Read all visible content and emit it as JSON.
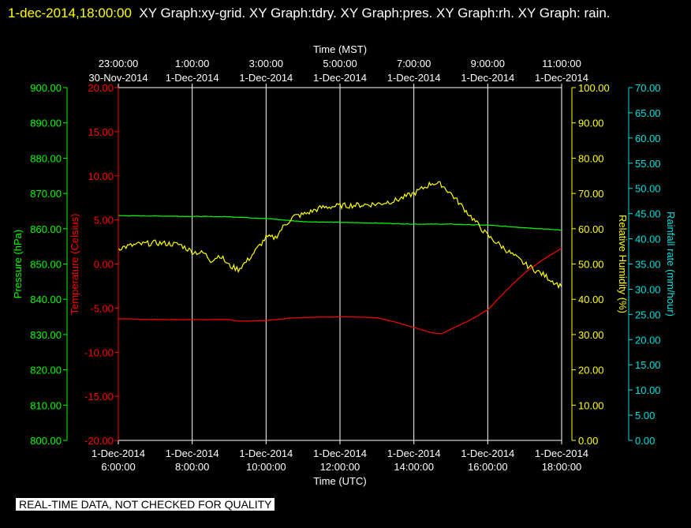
{
  "header": {
    "timestamp": "1-dec-2014,18:00:00",
    "graph_names": "XY Graph:xy-grid.  XY Graph:tdry.  XY Graph:pres.  XY Graph:rh.  XY Graph: rain."
  },
  "disclaimer": "REAL-TIME DATA, NOT CHECKED FOR QUALITY",
  "colors": {
    "background": "#000000",
    "grid": "#ffffff",
    "temperature": "#ff0000",
    "pressure": "#00ff00",
    "humidity": "#ffff00",
    "rainfall": "#00e0e0"
  },
  "chart_data": {
    "type": "line",
    "grid": true,
    "x_axis_bottom": {
      "label": "Time (UTC)",
      "ticks": [
        {
          "date": "1-Dec-2014",
          "time": "6:00:00"
        },
        {
          "date": "1-Dec-2014",
          "time": "8:00:00"
        },
        {
          "date": "1-Dec-2014",
          "time": "10:00:00"
        },
        {
          "date": "1-Dec-2014",
          "time": "12:00:00"
        },
        {
          "date": "1-Dec-2014",
          "time": "14:00:00"
        },
        {
          "date": "1-Dec-2014",
          "time": "16:00:00"
        },
        {
          "date": "1-Dec-2014",
          "time": "18:00:00"
        }
      ]
    },
    "x_axis_top": {
      "label": "Time (MST)",
      "ticks": [
        {
          "time": "23:00:00",
          "date": "30-Nov-2014"
        },
        {
          "time": "1:00:00",
          "date": "1-Dec-2014"
        },
        {
          "time": "3:00:00",
          "date": "1-Dec-2014"
        },
        {
          "time": "5:00:00",
          "date": "1-Dec-2014"
        },
        {
          "time": "7:00:00",
          "date": "1-Dec-2014"
        },
        {
          "time": "9:00:00",
          "date": "1-Dec-2014"
        },
        {
          "time": "11:00:00",
          "date": "1-Dec-2014"
        }
      ]
    },
    "y_axes": {
      "pressure": {
        "label": "Pressure (hPa)",
        "range": [
          800,
          900
        ],
        "ticks": [
          "800.00",
          "810.00",
          "820.00",
          "830.00",
          "840.00",
          "850.00",
          "860.00",
          "870.00",
          "880.00",
          "890.00",
          "900.00"
        ]
      },
      "temperature": {
        "label": "Temperature (Celsius)",
        "range": [
          -20,
          20
        ],
        "ticks": [
          "-20.00",
          "-15.00",
          "-10.00",
          "-5.00",
          "0.00",
          "5.00",
          "10.00",
          "15.00",
          "20.00"
        ]
      },
      "humidity": {
        "label": "Relative Humidity (%)",
        "range": [
          0,
          100
        ],
        "ticks": [
          "0.00",
          "10.00",
          "20.00",
          "30.00",
          "40.00",
          "50.00",
          "60.00",
          "70.00",
          "80.00",
          "90.00",
          "100.00"
        ]
      },
      "rainfall": {
        "label": "Rainfall rate (mm/hour)",
        "range": [
          0,
          70
        ],
        "ticks": [
          "0.00",
          "5.00",
          "10.00",
          "15.00",
          "20.00",
          "25.00",
          "30.00",
          "35.00",
          "40.00",
          "45.00",
          "50.00",
          "55.00",
          "60.00",
          "65.00",
          "70.00"
        ]
      }
    },
    "series": [
      {
        "axis": "temperature",
        "color": "#ff0000",
        "points": [
          [
            "6:00",
            -6.2
          ],
          [
            "7:00",
            -6.3
          ],
          [
            "8:00",
            -6.3
          ],
          [
            "9:00",
            -6.3
          ],
          [
            "9:15",
            -6.5
          ],
          [
            "10:00",
            -6.4
          ],
          [
            "10:45",
            -6.1
          ],
          [
            "11:30",
            -6.0
          ],
          [
            "12:30",
            -6.0
          ],
          [
            "13:00",
            -6.1
          ],
          [
            "13:30",
            -6.6
          ],
          [
            "14:00",
            -7.2
          ],
          [
            "14:30",
            -7.8
          ],
          [
            "14:45",
            -7.9
          ],
          [
            "15:00",
            -7.4
          ],
          [
            "15:30",
            -6.4
          ],
          [
            "16:00",
            -5.2
          ],
          [
            "16:30",
            -3.0
          ],
          [
            "17:00",
            -1.0
          ],
          [
            "17:30",
            0.5
          ],
          [
            "18:00",
            1.8
          ]
        ]
      },
      {
        "axis": "pressure",
        "color": "#00ff00",
        "points": [
          [
            "6:00",
            863.7
          ],
          [
            "8:00",
            863.5
          ],
          [
            "9:00",
            863.4
          ],
          [
            "10:00",
            862.9
          ],
          [
            "11:00",
            862.0
          ],
          [
            "12:00",
            861.8
          ],
          [
            "13:00",
            861.6
          ],
          [
            "14:00",
            861.3
          ],
          [
            "15:00",
            861.3
          ],
          [
            "16:00",
            861.0
          ],
          [
            "17:00",
            860.3
          ],
          [
            "18:00",
            859.6
          ]
        ]
      },
      {
        "axis": "humidity",
        "color": "#ffff00",
        "points": [
          [
            "6:00",
            54.5
          ],
          [
            "6:30",
            55.5
          ],
          [
            "7:00",
            56.0
          ],
          [
            "7:40",
            55.5
          ],
          [
            "8:00",
            53.5
          ],
          [
            "8:20",
            53.0
          ],
          [
            "8:30",
            51.0
          ],
          [
            "8:45",
            52.5
          ],
          [
            "9:00",
            49.5
          ],
          [
            "9:15",
            48.5
          ],
          [
            "9:30",
            51.0
          ],
          [
            "10:00",
            57.5
          ],
          [
            "10:15",
            57.5
          ],
          [
            "10:30",
            61.0
          ],
          [
            "10:45",
            63.5
          ],
          [
            "11:00",
            64.0
          ],
          [
            "11:30",
            66.0
          ],
          [
            "12:00",
            66.5
          ],
          [
            "12:30",
            66.7
          ],
          [
            "13:00",
            67.0
          ],
          [
            "13:30",
            68.0
          ],
          [
            "14:00",
            70.0
          ],
          [
            "14:30",
            73.0
          ],
          [
            "14:45",
            72.5
          ],
          [
            "15:00",
            70.0
          ],
          [
            "15:30",
            64.0
          ],
          [
            "16:00",
            58.0
          ],
          [
            "16:30",
            54.0
          ],
          [
            "17:00",
            50.0
          ],
          [
            "17:30",
            47.0
          ],
          [
            "18:00",
            43.5
          ]
        ]
      },
      {
        "axis": "rainfall",
        "color": "#00e0e0",
        "points": []
      }
    ]
  }
}
